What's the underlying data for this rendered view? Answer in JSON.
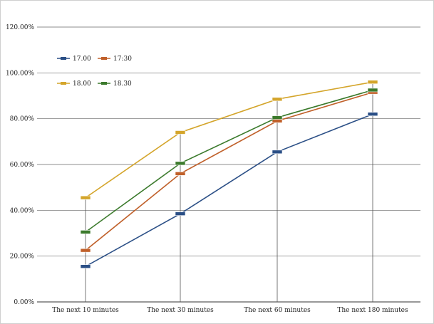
{
  "chart_data": {
    "type": "line",
    "categories": [
      "The next 10 minutes",
      "The next 30 minutes",
      "The next 60 minutes",
      "The next 180 minutes"
    ],
    "ylim": [
      0,
      120
    ],
    "yticks": [
      0,
      20,
      40,
      60,
      80,
      100,
      120
    ],
    "ytick_labels": [
      "0.00%",
      "20.00%",
      "40.00%",
      "60.00%",
      "80.00%",
      "100.00%",
      "120.00%"
    ],
    "grid": "horizontal",
    "legend_position": "top-left",
    "series": [
      {
        "name": "17.00",
        "color": "#2b4f86",
        "values": [
          15.5,
          38.5,
          65.5,
          82.0
        ]
      },
      {
        "name": "17:30",
        "color": "#c0602a",
        "values": [
          22.5,
          56.0,
          79.0,
          91.5
        ]
      },
      {
        "name": "18.00",
        "color": "#d4a52b",
        "values": [
          45.5,
          74.0,
          88.5,
          96.0
        ]
      },
      {
        "name": "18.30",
        "color": "#3b7a2c",
        "values": [
          30.5,
          60.5,
          80.5,
          92.5
        ]
      }
    ]
  }
}
